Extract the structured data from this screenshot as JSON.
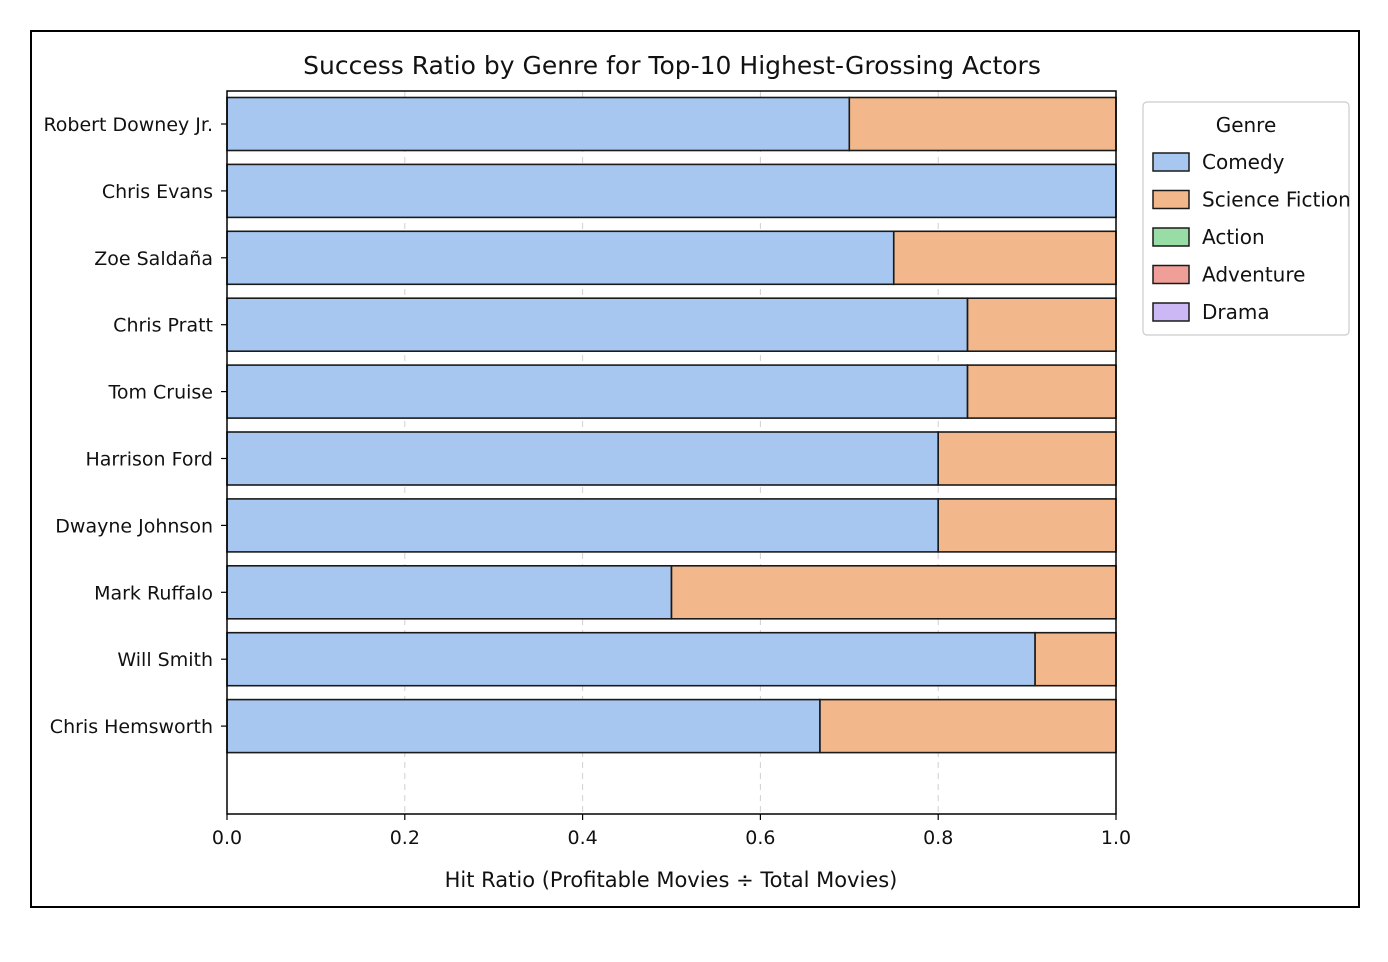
{
  "chart_data": {
    "type": "bar",
    "orientation": "horizontal",
    "stacked": true,
    "title": "Success Ratio by Genre for Top-10 Highest-Grossing Actors",
    "xlabel": "Hit Ratio (Profitable Movies ÷ Total Movies)",
    "ylabel": "",
    "xlim": [
      0.0,
      1.0
    ],
    "xticks": [
      "0.0",
      "0.2",
      "0.4",
      "0.6",
      "0.8",
      "1.0"
    ],
    "grid": "x-dashed",
    "categories": [
      "Robert Downey Jr.",
      "Chris Evans",
      "Zoe Saldaña",
      "Chris Pratt",
      "Tom Cruise",
      "Harrison Ford",
      "Dwayne Johnson",
      "Mark Ruffalo",
      "Will Smith",
      "Chris Hemsworth"
    ],
    "series": [
      {
        "name": "Comedy",
        "color": "#a7c7f0",
        "values": [
          0.7,
          1.0,
          0.75,
          0.833,
          0.833,
          0.8,
          0.8,
          0.5,
          0.909,
          0.667
        ]
      },
      {
        "name": "Science Fiction",
        "color": "#f2b78a",
        "values": [
          0.3,
          0.0,
          0.25,
          0.167,
          0.167,
          0.2,
          0.2,
          0.5,
          0.091,
          0.333
        ]
      },
      {
        "name": "Action",
        "color": "#98dda5",
        "values": [
          0,
          0,
          0,
          0,
          0,
          0,
          0,
          0,
          0,
          0
        ]
      },
      {
        "name": "Adventure",
        "color": "#ef9f98",
        "values": [
          0,
          0,
          0,
          0,
          0,
          0,
          0,
          0,
          0,
          0
        ]
      },
      {
        "name": "Drama",
        "color": "#cbb8f4",
        "values": [
          0,
          0,
          0,
          0,
          0,
          0,
          0,
          0,
          0,
          0
        ]
      }
    ],
    "legend": {
      "title": "Genre",
      "placement": "upper-right-outside"
    }
  }
}
